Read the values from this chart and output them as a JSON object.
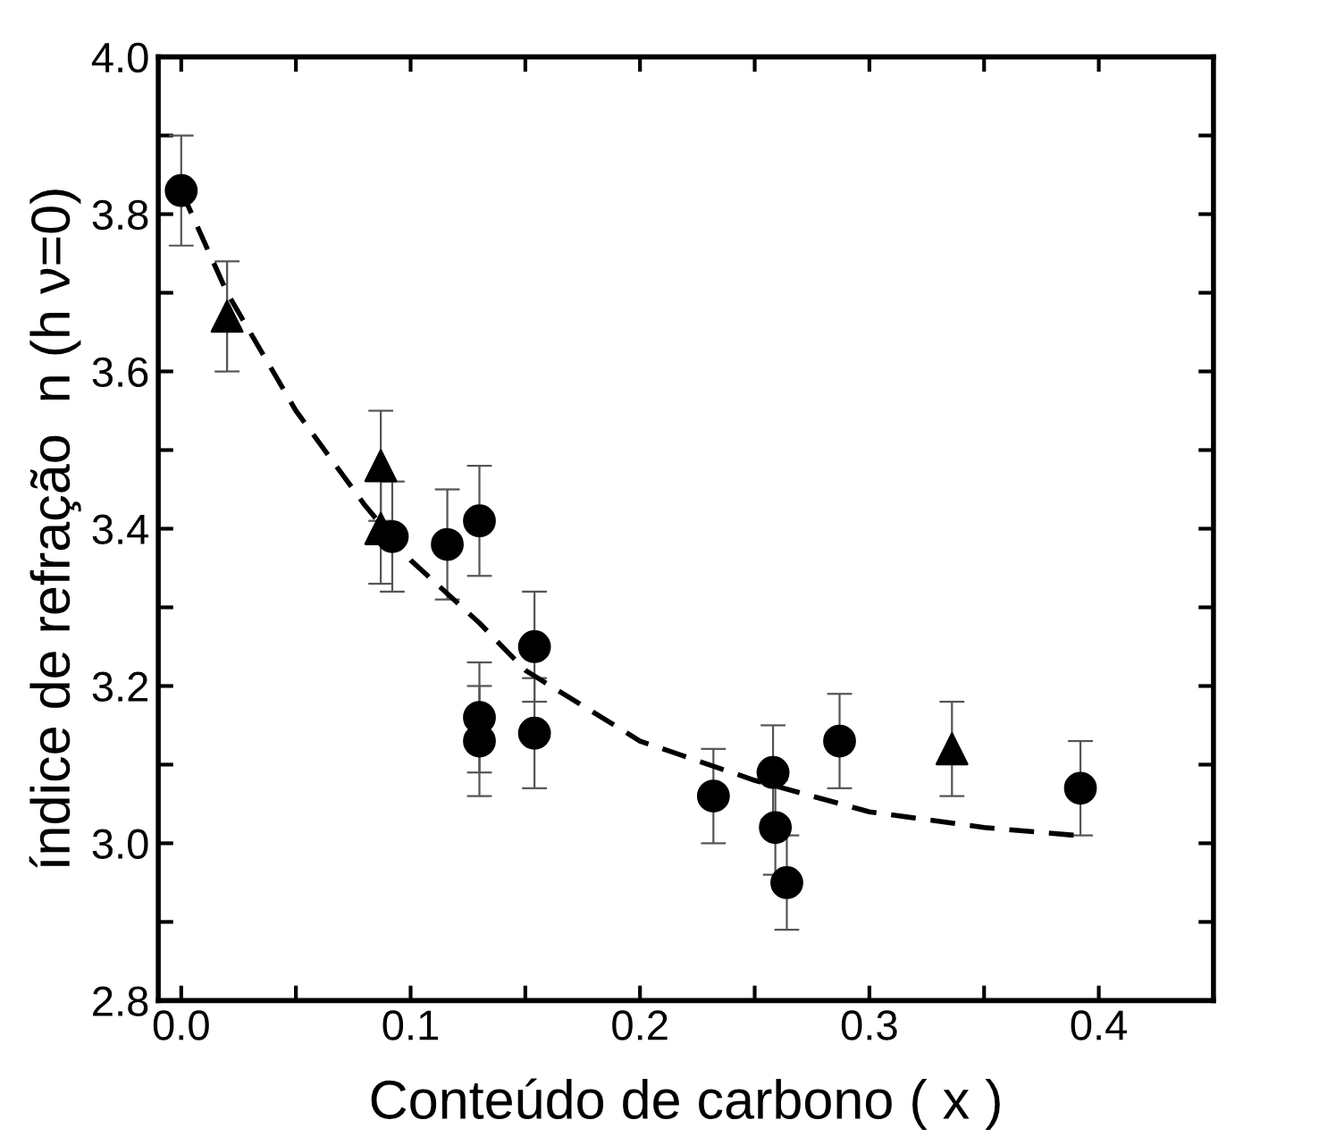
{
  "chart_data": {
    "type": "scatter",
    "xlabel": "Conteúdo de carbono ( x )",
    "ylabel": "índice de refração  n (h ν=0)",
    "xlim": [
      -0.01,
      0.45
    ],
    "ylim": [
      2.8,
      4.0
    ],
    "xticks": [
      {
        "value": 0,
        "label": "0.0"
      },
      {
        "value": 0.05,
        "label": null
      },
      0.1,
      {
        "value": 0.15,
        "label": null
      },
      0.2,
      {
        "value": 0.25,
        "label": null
      },
      0.3,
      {
        "value": 0.35,
        "label": null
      },
      0.4
    ],
    "yticks": [
      2.8,
      {
        "value": 2.9,
        "label": null
      },
      {
        "value": 3.0,
        "label": "3.0"
      },
      {
        "value": 3.1,
        "label": null
      },
      3.2,
      {
        "value": 3.3,
        "label": null
      },
      3.4,
      {
        "value": 3.5,
        "label": null
      },
      3.6,
      {
        "value": 3.7,
        "label": null
      },
      3.8,
      {
        "value": 3.9,
        "label": null
      },
      {
        "value": 4.0,
        "label": "4.0"
      }
    ],
    "grid": false,
    "legend": false,
    "series": [
      {
        "marker": "circle",
        "color": "#000000",
        "x": [
          0.0,
          0.092,
          0.116,
          0.13,
          0.13,
          0.13,
          0.154,
          0.154,
          0.232,
          0.258,
          0.259,
          0.264,
          0.287,
          0.392
        ],
        "values": [
          3.83,
          3.39,
          3.38,
          3.41,
          3.16,
          3.13,
          3.25,
          3.14,
          3.06,
          3.09,
          3.02,
          2.95,
          3.13,
          3.07
        ],
        "errors": [
          0.07,
          0.07,
          0.07,
          0.07,
          0.07,
          0.07,
          0.07,
          0.07,
          0.06,
          0.06,
          0.06,
          0.06,
          0.06,
          0.06
        ]
      },
      {
        "marker": "triangle",
        "color": "#000000",
        "x": [
          0.02,
          0.087,
          0.087,
          0.336
        ],
        "values": [
          3.67,
          3.48,
          3.4,
          3.12
        ],
        "errors": [
          0.07,
          0.07,
          0.07,
          0.06
        ]
      },
      {
        "type": "line",
        "marker": "none",
        "line_style": "dashed",
        "color": "#000000",
        "x": [
          0.0,
          0.02,
          0.05,
          0.08,
          0.1,
          0.13,
          0.15,
          0.2,
          0.25,
          0.3,
          0.35,
          0.39
        ],
        "values": [
          3.83,
          3.7,
          3.55,
          3.43,
          3.36,
          3.28,
          3.22,
          3.13,
          3.08,
          3.04,
          3.02,
          3.01
        ]
      }
    ]
  }
}
